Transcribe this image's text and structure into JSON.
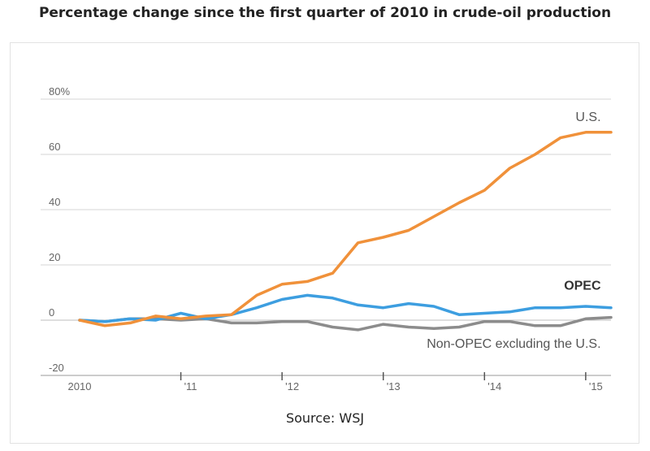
{
  "chart_data": {
    "type": "line",
    "title": "Percentage change since the first quarter of 2010 in crude-oil production",
    "source": "Source: WSJ",
    "xlabel": "",
    "ylabel": "",
    "ylim": [
      -20,
      80
    ],
    "xlim": [
      2010,
      2015.25
    ],
    "y_ticks": [
      {
        "value": 80,
        "label": "80%"
      },
      {
        "value": 60,
        "label": "60"
      },
      {
        "value": 40,
        "label": "40"
      },
      {
        "value": 20,
        "label": "20"
      },
      {
        "value": 0,
        "label": "0"
      },
      {
        "value": -20,
        "label": "-20"
      }
    ],
    "x_ticks": [
      {
        "value": 2010,
        "label": "2010"
      },
      {
        "value": 2011,
        "label": "'11"
      },
      {
        "value": 2012,
        "label": "'12"
      },
      {
        "value": 2013,
        "label": "'13"
      },
      {
        "value": 2014,
        "label": "'14"
      },
      {
        "value": 2015,
        "label": "'15"
      }
    ],
    "grid": true,
    "series": [
      {
        "name": "U.S.",
        "color": "#f0913a",
        "x": [
          2010,
          2010.25,
          2010.5,
          2010.75,
          2011,
          2011.25,
          2011.5,
          2011.75,
          2012,
          2012.25,
          2012.5,
          2012.75,
          2013,
          2013.25,
          2013.5,
          2013.75,
          2014,
          2014.25,
          2014.5,
          2014.75,
          2015,
          2015.25
        ],
        "values": [
          0,
          -2,
          -1,
          1.5,
          0.5,
          1.5,
          2,
          9,
          13,
          14,
          17,
          28,
          30,
          32.5,
          37.5,
          42.5,
          47,
          55,
          60,
          66,
          68,
          68
        ],
        "label_weight": "normal"
      },
      {
        "name": "OPEC",
        "color": "#3d9ee0",
        "x": [
          2010,
          2010.25,
          2010.5,
          2010.75,
          2011,
          2011.25,
          2011.5,
          2011.75,
          2012,
          2012.25,
          2012.5,
          2012.75,
          2013,
          2013.25,
          2013.5,
          2013.75,
          2014,
          2014.25,
          2014.5,
          2014.75,
          2015,
          2015.25
        ],
        "values": [
          0,
          -0.5,
          0.5,
          0,
          2.5,
          0.5,
          2,
          4.5,
          7.5,
          9,
          8,
          5.5,
          4.5,
          6,
          5,
          2,
          2.5,
          3,
          4.5,
          4.5,
          5,
          4.5
        ],
        "label_weight": "bold"
      },
      {
        "name": "Non-OPEC excluding the U.S.",
        "color": "#8c8c8c",
        "x": [
          2010,
          2010.25,
          2010.5,
          2010.75,
          2011,
          2011.25,
          2011.5,
          2011.75,
          2012,
          2012.25,
          2012.5,
          2012.75,
          2013,
          2013.25,
          2013.5,
          2013.75,
          2014,
          2014.25,
          2014.5,
          2014.75,
          2015,
          2015.25
        ],
        "values": [
          0,
          -0.5,
          0.5,
          0.5,
          0,
          0.5,
          -1,
          -1,
          -0.5,
          -0.5,
          -2.5,
          -3.5,
          -1.5,
          -2.5,
          -3,
          -2.5,
          -0.5,
          -0.5,
          -2,
          -2,
          0.5,
          1
        ],
        "label_weight": "normal"
      }
    ],
    "series_labels": [
      {
        "text": "U.S.",
        "x": 2015.15,
        "y": 72,
        "color": "#555555",
        "weight": "normal"
      },
      {
        "text": "OPEC",
        "x": 2015.15,
        "y": 11,
        "color": "#333333",
        "weight": "bold"
      },
      {
        "text": "Non-OPEC excluding the U.S.",
        "x": 2015.15,
        "y": -10,
        "color": "#555555",
        "weight": "normal"
      }
    ]
  }
}
